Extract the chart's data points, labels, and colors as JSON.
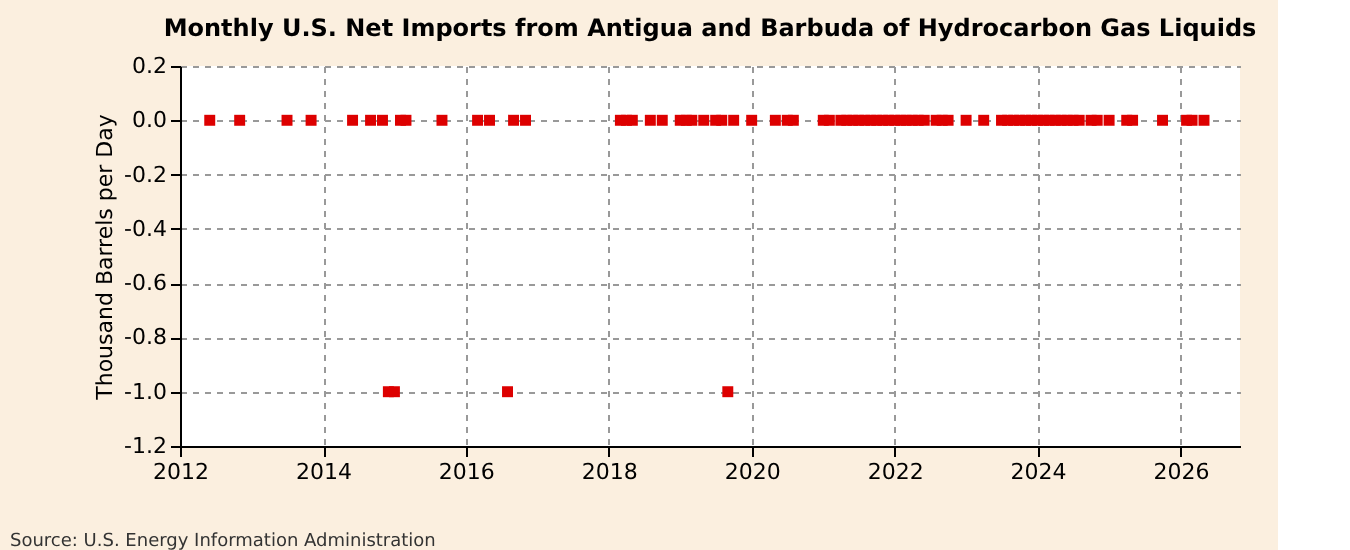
{
  "chart_data": {
    "type": "scatter",
    "title": "Monthly U.S. Net Imports from Antigua and Barbuda of Hydrocarbon Gas Liquids",
    "ylabel": "Thousand Barrels per Day",
    "annotations": [
      "Source: U.S. Energy Information Administration"
    ],
    "x": [
      "2012-06",
      "2012-11",
      "2013-07",
      "2013-11",
      "2014-06",
      "2014-09",
      "2014-11",
      "2014-12",
      "2015-01",
      "2015-02",
      "2015-03",
      "2015-09",
      "2016-03",
      "2016-05",
      "2016-08",
      "2016-09",
      "2016-11",
      "2018-03",
      "2018-04",
      "2018-05",
      "2018-08",
      "2018-10",
      "2019-01",
      "2019-02",
      "2019-03",
      "2019-05",
      "2019-07",
      "2019-08",
      "2019-09",
      "2019-10",
      "2020-01",
      "2020-05",
      "2020-07",
      "2020-08",
      "2021-01",
      "2021-02",
      "2021-04",
      "2021-05",
      "2021-06",
      "2021-07",
      "2021-08",
      "2021-09",
      "2021-10",
      "2021-11",
      "2021-12",
      "2022-01",
      "2022-02",
      "2022-03",
      "2022-04",
      "2022-05",
      "2022-06",
      "2022-08",
      "2022-09",
      "2022-10",
      "2023-01",
      "2023-04",
      "2023-07",
      "2023-08",
      "2023-09",
      "2023-10",
      "2023-11",
      "2023-12",
      "2024-01",
      "2024-02",
      "2024-03",
      "2024-04",
      "2024-05",
      "2024-06",
      "2024-07",
      "2024-08",
      "2024-10",
      "2024-11",
      "2025-01",
      "2025-04",
      "2025-05",
      "2025-10",
      "2026-02",
      "2026-03",
      "2026-05"
    ],
    "values": [
      0,
      0,
      0,
      0,
      0,
      0,
      0,
      -1,
      -1,
      0,
      0,
      0,
      0,
      0,
      -1,
      0,
      0,
      0,
      0,
      0,
      0,
      0,
      0,
      0,
      0,
      0,
      0,
      0,
      -1,
      0,
      0,
      0,
      0,
      0,
      0,
      0,
      0,
      0,
      0,
      0,
      0,
      0,
      0,
      0,
      0,
      0,
      0,
      0,
      0,
      0,
      0,
      0,
      0,
      0,
      0,
      0,
      0,
      0,
      0,
      0,
      0,
      0,
      0,
      0,
      0,
      0,
      0,
      0,
      0,
      0,
      0,
      0,
      0,
      0,
      0,
      0,
      0,
      0,
      0
    ],
    "color": "#dd0000",
    "marker": "square",
    "grid": true,
    "xlim": [
      "2012",
      "2026-11"
    ],
    "xticks": [
      "2012",
      "2014",
      "2016",
      "2018",
      "2020",
      "2022",
      "2024",
      "2026"
    ],
    "ylim": [
      -1.2,
      0.2
    ],
    "yticks": [
      {
        "value": -1.2,
        "label": "-1.2"
      },
      {
        "value": -1,
        "label": "-1.0"
      },
      -0.8,
      -0.6,
      -0.4,
      -0.2,
      {
        "value": 0,
        "label": "0.0"
      },
      0.2
    ]
  }
}
